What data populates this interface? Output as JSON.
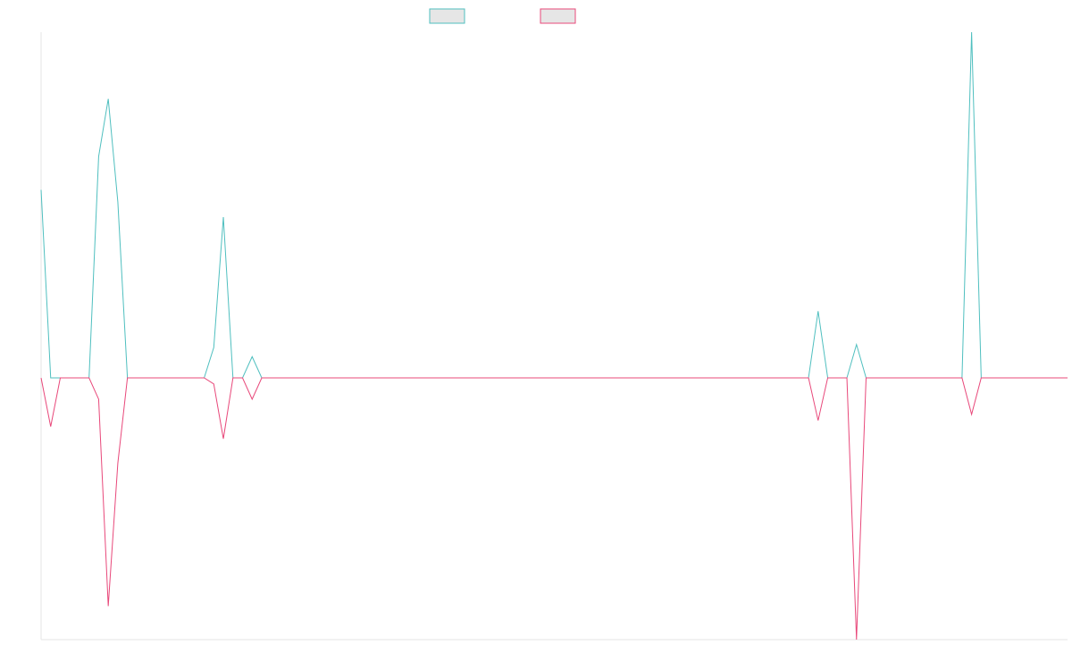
{
  "chart_data": {
    "type": "line",
    "title": "",
    "xlabel": "",
    "ylabel": "",
    "grid": false,
    "legend_position": "top-center",
    "x_count": 108,
    "ylim": [
      -100,
      100
    ],
    "series": [
      {
        "color": "#4fbfbf",
        "values": [
          62,
          0,
          0,
          0,
          0,
          0,
          73,
          92,
          58,
          0,
          0,
          0,
          0,
          0,
          0,
          0,
          0,
          0,
          10,
          53,
          0,
          0,
          7,
          0,
          0,
          0,
          0,
          0,
          0,
          0,
          0,
          0,
          0,
          0,
          0,
          0,
          0,
          0,
          0,
          0,
          0,
          0,
          0,
          0,
          0,
          0,
          0,
          0,
          0,
          0,
          0,
          0,
          0,
          0,
          0,
          0,
          0,
          0,
          0,
          0,
          0,
          0,
          0,
          0,
          0,
          0,
          0,
          0,
          0,
          0,
          0,
          0,
          0,
          0,
          0,
          0,
          0,
          0,
          0,
          0,
          0,
          22,
          0,
          0,
          0,
          11,
          0,
          0,
          0,
          0,
          0,
          0,
          0,
          0,
          0,
          0,
          0,
          114,
          0,
          0,
          0,
          0,
          0,
          0,
          0,
          0,
          0,
          0
        ]
      },
      {
        "color": "#e8487a",
        "values": [
          0,
          -16,
          0,
          0,
          0,
          0,
          -7,
          -75,
          -28,
          0,
          0,
          0,
          0,
          0,
          0,
          0,
          0,
          0,
          -2,
          -20,
          0,
          0,
          -7,
          0,
          0,
          0,
          0,
          0,
          0,
          0,
          0,
          0,
          0,
          0,
          0,
          0,
          0,
          0,
          0,
          0,
          0,
          0,
          0,
          0,
          0,
          0,
          0,
          0,
          0,
          0,
          0,
          0,
          0,
          0,
          0,
          0,
          0,
          0,
          0,
          0,
          0,
          0,
          0,
          0,
          0,
          0,
          0,
          0,
          0,
          0,
          0,
          0,
          0,
          0,
          0,
          0,
          0,
          0,
          0,
          0,
          0,
          -14,
          0,
          0,
          0,
          -86,
          0,
          0,
          0,
          0,
          0,
          0,
          0,
          0,
          0,
          0,
          0,
          -12,
          0,
          0,
          0,
          0,
          0,
          0,
          0,
          0,
          0,
          0
        ]
      }
    ]
  }
}
